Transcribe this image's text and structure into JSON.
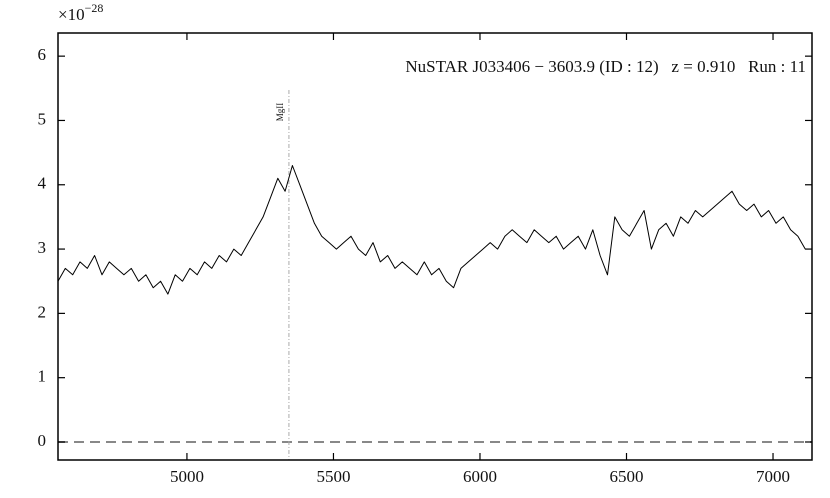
{
  "chart_data": {
    "type": "line",
    "annotation": "NuSTAR J033406 − 3603.9 (ID : 12)   z = 0.910   Run : 11",
    "y_offset": {
      "base": "×10",
      "exponent": "−28"
    },
    "x": [
      4560,
      4585,
      4610,
      4635,
      4660,
      4685,
      4710,
      4735,
      4760,
      4785,
      4810,
      4835,
      4860,
      4885,
      4910,
      4935,
      4960,
      4985,
      5010,
      5035,
      5060,
      5085,
      5110,
      5135,
      5160,
      5185,
      5210,
      5235,
      5260,
      5285,
      5310,
      5335,
      5360,
      5385,
      5410,
      5435,
      5460,
      5485,
      5510,
      5535,
      5560,
      5585,
      5610,
      5635,
      5660,
      5685,
      5710,
      5735,
      5760,
      5785,
      5810,
      5835,
      5860,
      5885,
      5910,
      5935,
      5960,
      5985,
      6010,
      6035,
      6060,
      6085,
      6110,
      6135,
      6160,
      6185,
      6210,
      6235,
      6260,
      6285,
      6310,
      6335,
      6360,
      6385,
      6410,
      6435,
      6460,
      6485,
      6510,
      6535,
      6560,
      6585,
      6610,
      6635,
      6660,
      6685,
      6710,
      6735,
      6760,
      6785,
      6810,
      6835,
      6860,
      6885,
      6910,
      6935,
      6960,
      6985,
      7010,
      7035,
      7060,
      7085,
      7110
    ],
    "values": [
      2.5,
      2.7,
      2.6,
      2.8,
      2.7,
      2.9,
      2.6,
      2.8,
      2.7,
      2.6,
      2.7,
      2.5,
      2.6,
      2.4,
      2.5,
      2.3,
      2.6,
      2.5,
      2.7,
      2.6,
      2.8,
      2.7,
      2.9,
      2.8,
      3.0,
      2.9,
      3.1,
      3.3,
      3.5,
      3.8,
      4.1,
      3.9,
      4.3,
      4.0,
      3.7,
      3.4,
      3.2,
      3.1,
      3.0,
      3.1,
      3.2,
      3.0,
      2.9,
      3.1,
      2.8,
      2.9,
      2.7,
      2.8,
      2.7,
      2.6,
      2.8,
      2.6,
      2.7,
      2.5,
      2.4,
      2.7,
      2.8,
      2.9,
      3.0,
      3.1,
      3.0,
      3.2,
      3.3,
      3.2,
      3.1,
      3.3,
      3.2,
      3.1,
      3.2,
      3.0,
      3.1,
      3.2,
      3.0,
      3.3,
      2.9,
      2.6,
      3.5,
      3.3,
      3.2,
      3.4,
      3.6,
      3.0,
      3.3,
      3.4,
      3.2,
      3.5,
      3.4,
      3.6,
      3.5,
      3.6,
      3.7,
      3.8,
      3.9,
      3.7,
      3.6,
      3.7,
      3.5,
      3.6,
      3.4,
      3.5,
      3.3,
      3.2,
      3.0
    ],
    "color": "#000000",
    "xlim": [
      4560,
      7133
    ],
    "ylim": [
      -0.28,
      6.36
    ],
    "xticks": [
      5000,
      5500,
      6000,
      6500,
      7000
    ],
    "yticks": [
      0,
      1,
      2,
      3,
      4,
      5,
      6
    ],
    "reference_line": {
      "y": 0,
      "color": "#888888"
    },
    "vline": {
      "x": 5348,
      "label": "MgII",
      "color": "#aaaaaa"
    }
  }
}
